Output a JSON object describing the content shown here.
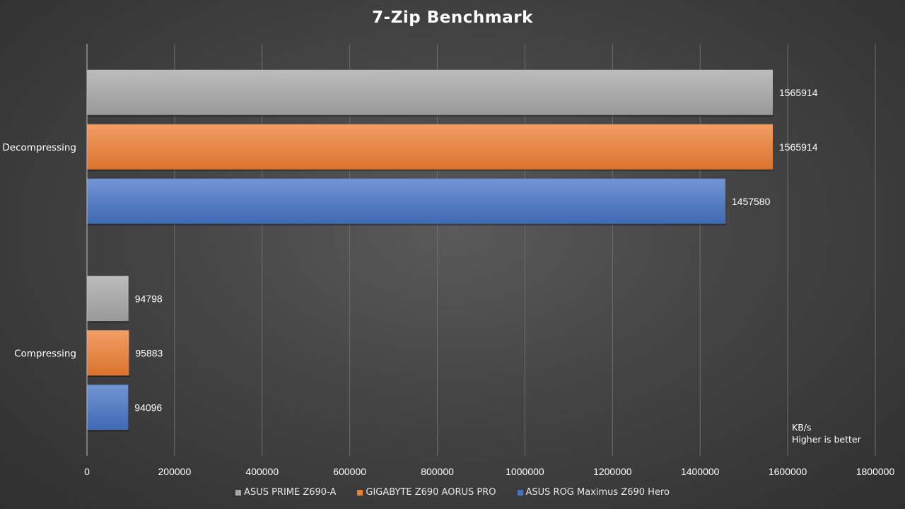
{
  "chart_data": {
    "type": "bar",
    "orientation": "horizontal",
    "title": "7-Zip Benchmark",
    "categories": [
      "Decompressing",
      "Compressing"
    ],
    "series": [
      {
        "name": "ASUS PRIME Z690-A",
        "color": "#a6a6a6",
        "values": [
          1565914,
          94798
        ]
      },
      {
        "name": "GIGABYTE Z690 AORUS PRO",
        "color": "#ed7d31",
        "values": [
          1565914,
          95883
        ]
      },
      {
        "name": "ASUS ROG Maximus Z690 Hero",
        "color": "#4472c4",
        "values": [
          1457580,
          94096
        ]
      }
    ],
    "xlim": [
      0,
      1800000
    ],
    "xticks": [
      0,
      200000,
      400000,
      600000,
      800000,
      1000000,
      1200000,
      1400000,
      1600000,
      1800000
    ],
    "grid": true,
    "legend_position": "bottom",
    "data_labels": true
  },
  "notes": {
    "unit": "KB/s",
    "direction": "Higher is better"
  }
}
